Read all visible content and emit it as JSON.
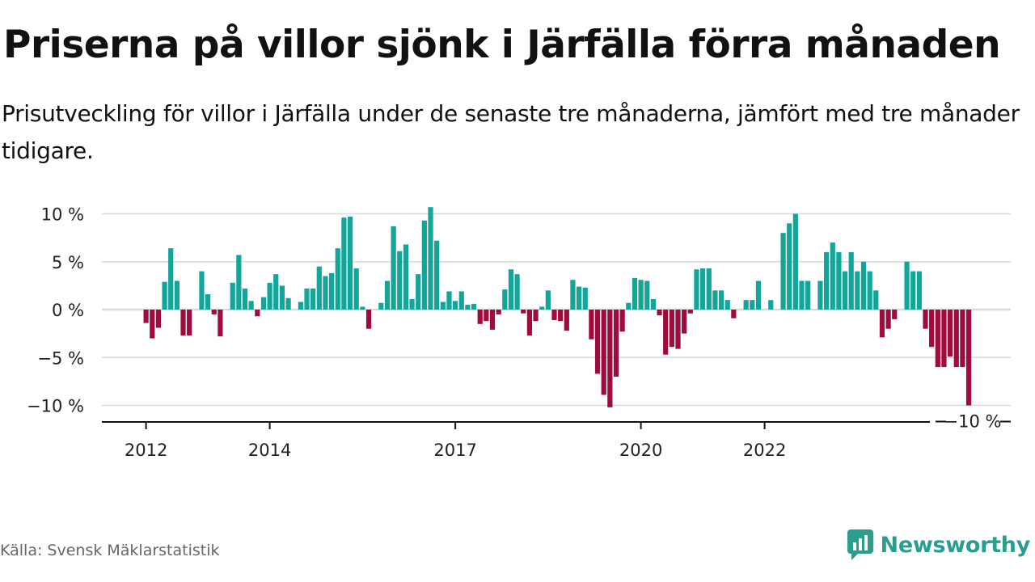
{
  "header": {
    "title": "Priserna på villor sjönk i Järfälla förra månaden",
    "subtitle": "Prisutveckling för villor i Järfälla under de senaste tre månaderna, jämfört med tre månader tidigare."
  },
  "footer": {
    "source": "Källa: Svensk Mäklarstatistik",
    "brand": "Newsworthy"
  },
  "colors": {
    "positive": "#12a59a",
    "negative": "#a10a3c",
    "grid": "#d9d9d9",
    "axis": "#111111",
    "brand": "#2a9d8f"
  },
  "icons": {
    "brand_logo": "bar-chart-icon"
  },
  "chart_data": {
    "type": "bar",
    "title": "",
    "xlabel": "",
    "ylabel": "",
    "ylim": [
      -12,
      12
    ],
    "y_ticks": [
      10,
      5,
      0,
      -5,
      -10
    ],
    "y_tick_labels": [
      "10 %",
      "5 %",
      "0 %",
      "−5 %",
      "−10 %"
    ],
    "x_ticks": [
      "2012",
      "2014",
      "2017",
      "2020",
      "2022"
    ],
    "x_tick_index": [
      0,
      20,
      50,
      80,
      100
    ],
    "grid": true,
    "last_value_label": "−10 %",
    "series": [
      {
        "frequency": "monthly",
        "start_year": 2012,
        "values": [
          -1.4,
          -3.0,
          -1.9,
          2.9,
          6.4,
          3.0,
          -2.7,
          -2.7,
          0,
          4.0,
          1.6,
          -0.5,
          -2.8,
          0,
          2.8,
          5.7,
          2.2,
          0.9,
          -0.7,
          1.3,
          2.8,
          3.7,
          2.5,
          1.2,
          0,
          0.8,
          2.2,
          2.2,
          4.5,
          3.5,
          3.8,
          6.4,
          9.6,
          9.7,
          4.3,
          0.3,
          -2.0,
          0,
          0.7,
          3.0,
          8.7,
          6.1,
          6.8,
          1.1,
          3.7,
          9.3,
          10.7,
          7.2,
          0.8,
          1.9,
          0.9,
          1.9,
          0.5,
          0.6,
          -1.5,
          -1.2,
          -2.1,
          -0.5,
          2.1,
          4.2,
          3.7,
          -0.4,
          -2.7,
          -1.2,
          0.3,
          2.0,
          -1.1,
          -1.2,
          -2.2,
          3.1,
          2.4,
          2.3,
          -3.1,
          -6.7,
          -8.9,
          -10.2,
          -7.0,
          -2.3,
          0.7,
          3.3,
          3.1,
          3.0,
          1.1,
          -0.6,
          -4.7,
          -3.9,
          -4.1,
          -2.5,
          -0.4,
          4.2,
          4.3,
          4.3,
          2.0,
          2.0,
          1.0,
          -0.9,
          0,
          1.0,
          1.0,
          3.0,
          0,
          1.0,
          0,
          8.0,
          9.0,
          10.0,
          3.0,
          3.0,
          0,
          3.0,
          6.0,
          7.0,
          6.0,
          4.0,
          6.0,
          4.0,
          5.0,
          4.0,
          2.0,
          -2.9,
          -2.0,
          -1.0,
          0,
          5.0,
          4.0,
          4.0,
          -2.0,
          -3.9,
          -6.0,
          -6.0,
          -4.9,
          -6.0,
          -6.0,
          -10.0
        ]
      }
    ]
  }
}
